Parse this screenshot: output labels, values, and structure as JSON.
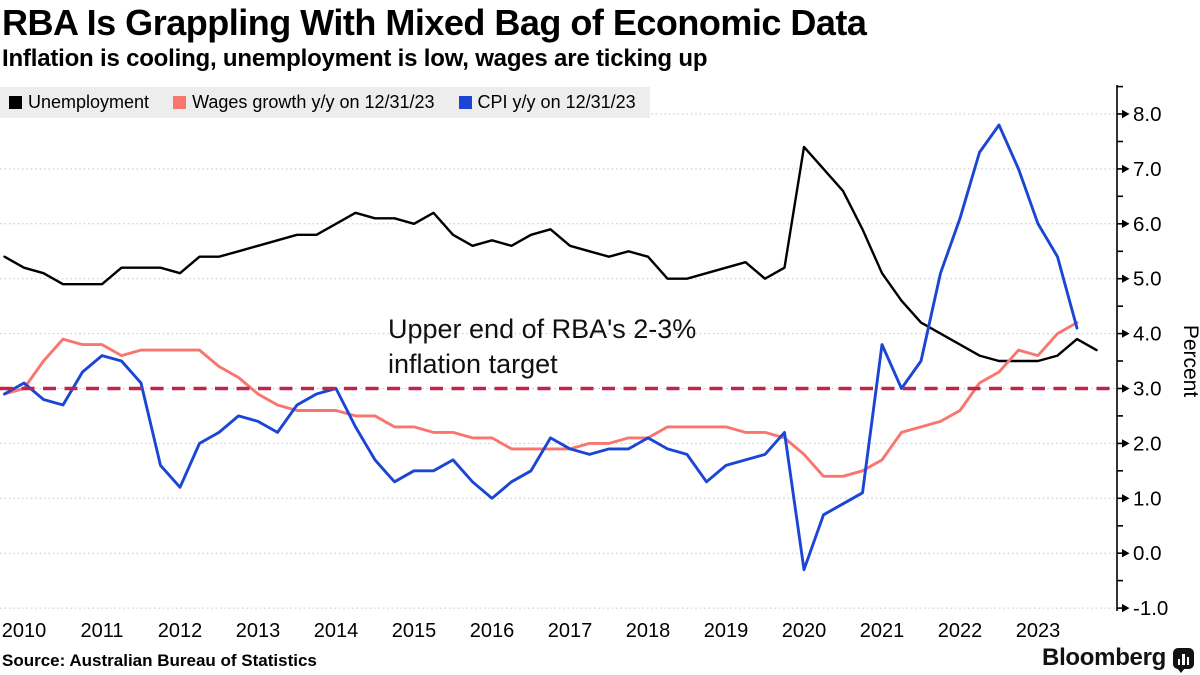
{
  "header": {
    "title": "RBA Is Grappling With Mixed Bag of Economic Data",
    "subtitle": "Inflation is cooling, unemployment is low, wages are ticking up"
  },
  "legend": {
    "items": [
      {
        "label": "Unemployment",
        "color": "#000000"
      },
      {
        "label": "Wages growth y/y on 12/31/23",
        "color": "#f9766e"
      },
      {
        "label": "CPI y/y on 12/31/23",
        "color": "#1b46d5"
      }
    ]
  },
  "annotation": {
    "line1": "Upper end of RBA's 2-3%",
    "line2": "inflation target"
  },
  "chart_data": {
    "type": "line",
    "title": "RBA Is Grappling With Mixed Bag of Economic Data",
    "xlabel": "",
    "ylabel": "Percent",
    "x_start": 2010.25,
    "x_step": 0.25,
    "x_ticks": [
      2010,
      2011,
      2012,
      2013,
      2014,
      2015,
      2016,
      2017,
      2018,
      2019,
      2020,
      2021,
      2022,
      2023
    ],
    "ylim": [
      -1.0,
      8.5
    ],
    "y_ticks": [
      8.0,
      7.0,
      6.0,
      5.0,
      4.0,
      3.0,
      2.0,
      1.0,
      0.0,
      -1.0
    ],
    "grid": "dotted-horizontal",
    "legend_position": "top-left",
    "reference_line": {
      "value": 3.0,
      "style": "dashed",
      "color": "#c02449",
      "label": "Upper end of RBA's 2-3% inflation target"
    },
    "series": [
      {
        "name": "Unemployment",
        "color": "#000000",
        "width": 2.4,
        "values": [
          5.4,
          5.2,
          5.1,
          4.9,
          4.9,
          4.9,
          5.2,
          5.2,
          5.2,
          5.1,
          5.4,
          5.4,
          5.5,
          5.6,
          5.7,
          5.8,
          5.8,
          6.0,
          6.2,
          6.1,
          6.1,
          6.0,
          6.2,
          5.8,
          5.6,
          5.7,
          5.6,
          5.8,
          5.9,
          5.6,
          5.5,
          5.4,
          5.5,
          5.4,
          5.0,
          5.0,
          5.1,
          5.2,
          5.3,
          5.0,
          5.2,
          7.4,
          7.0,
          6.6,
          5.9,
          5.1,
          4.6,
          4.2,
          4.0,
          3.8,
          3.6,
          3.5,
          3.5,
          3.5,
          3.6,
          3.9,
          3.7
        ]
      },
      {
        "name": "Wages growth y/y on 12/31/23",
        "color": "#f9766e",
        "width": 2.9,
        "values": [
          2.9,
          3.0,
          3.5,
          3.9,
          3.8,
          3.8,
          3.6,
          3.7,
          3.7,
          3.7,
          3.7,
          3.4,
          3.2,
          2.9,
          2.7,
          2.6,
          2.6,
          2.6,
          2.5,
          2.5,
          2.3,
          2.3,
          2.2,
          2.2,
          2.1,
          2.1,
          1.9,
          1.9,
          1.9,
          1.9,
          2.0,
          2.0,
          2.1,
          2.1,
          2.3,
          2.3,
          2.3,
          2.3,
          2.2,
          2.2,
          2.1,
          1.8,
          1.4,
          1.4,
          1.5,
          1.7,
          2.2,
          2.3,
          2.4,
          2.6,
          3.1,
          3.3,
          3.7,
          3.6,
          4.0,
          4.2
        ]
      },
      {
        "name": "CPI y/y on 12/31/23",
        "color": "#1b46d5",
        "width": 2.9,
        "values": [
          2.9,
          3.1,
          2.8,
          2.7,
          3.3,
          3.6,
          3.5,
          3.1,
          1.6,
          1.2,
          2.0,
          2.2,
          2.5,
          2.4,
          2.2,
          2.7,
          2.9,
          3.0,
          2.3,
          1.7,
          1.3,
          1.5,
          1.5,
          1.7,
          1.3,
          1.0,
          1.3,
          1.5,
          2.1,
          1.9,
          1.8,
          1.9,
          1.9,
          2.1,
          1.9,
          1.8,
          1.3,
          1.6,
          1.7,
          1.8,
          2.2,
          -0.3,
          0.7,
          0.9,
          1.1,
          3.8,
          3.0,
          3.5,
          5.1,
          6.1,
          7.3,
          7.8,
          7.0,
          6.0,
          5.4,
          4.1
        ]
      }
    ]
  },
  "footer": {
    "source": "Source: Australian Bureau of Statistics",
    "brand": "Bloomberg"
  }
}
